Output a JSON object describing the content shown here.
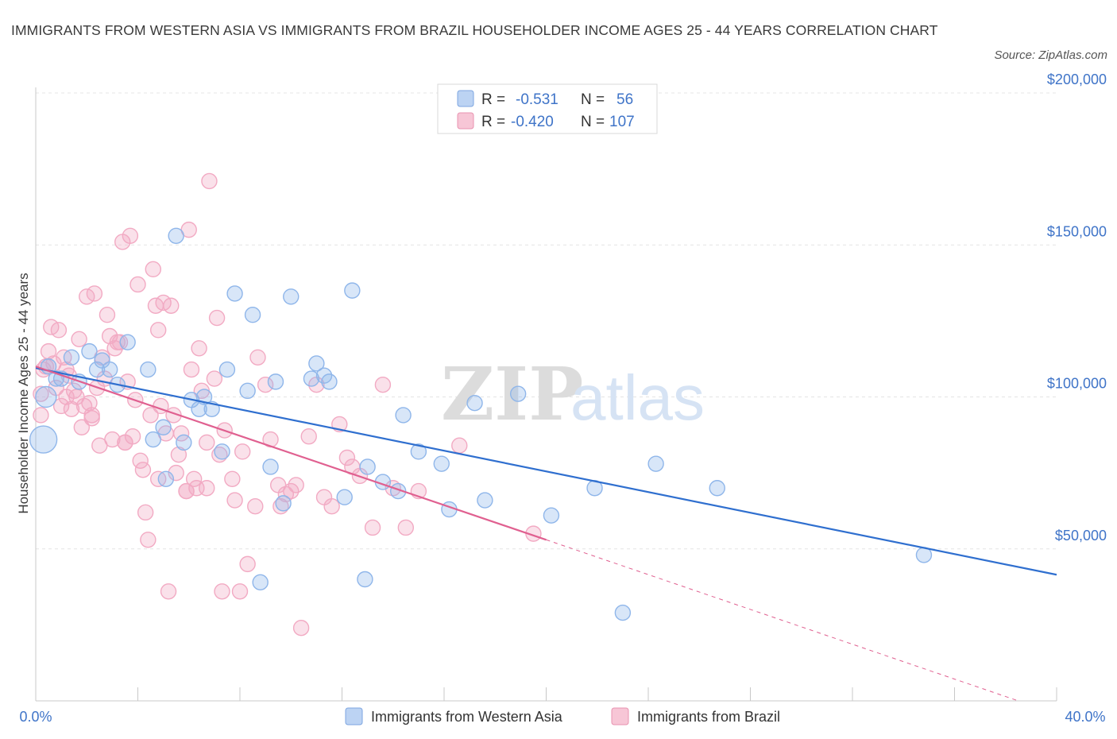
{
  "title": "IMMIGRANTS FROM WESTERN ASIA VS IMMIGRANTS FROM BRAZIL HOUSEHOLDER INCOME AGES 25 - 44 YEARS CORRELATION CHART",
  "source": "Source: ZipAtlas.com",
  "watermark": {
    "zip": "ZIP",
    "atlas": "atlas"
  },
  "legend": {
    "rows": [
      {
        "r_label": "R =",
        "r_value": "-0.531",
        "n_label": "N =",
        "n_value": "56"
      },
      {
        "r_label": "R =",
        "r_value": "-0.420",
        "n_label": "N =",
        "n_value": "107"
      }
    ]
  },
  "chart_data": {
    "type": "scatter",
    "title": "IMMIGRANTS FROM WESTERN ASIA VS IMMIGRANTS FROM BRAZIL HOUSEHOLDER INCOME AGES 25 - 44 YEARS CORRELATION CHART",
    "ylabel": "Householder Income Ages 25 - 44 years",
    "xlabel": "",
    "xlim": [
      0,
      40
    ],
    "ylim": [
      0,
      200000
    ],
    "x_tick_labels": [
      "0.0%",
      "40.0%"
    ],
    "y_ticks": [
      50000,
      100000,
      150000,
      200000
    ],
    "y_tick_labels": [
      "$50,000",
      "$100,000",
      "$150,000",
      "$200,000"
    ],
    "grid": true,
    "legend_position": "top-center",
    "series": [
      {
        "name": "Immigrants from Western Asia",
        "color": "#8fb6ea",
        "line_color": "#2f6fcf",
        "trend": {
          "x": [
            0,
            40
          ],
          "y": [
            109500,
            41500
          ]
        },
        "points": [
          [
            0.3,
            86000
          ],
          [
            0.4,
            100000
          ],
          [
            0.8,
            106000
          ],
          [
            1.0,
            106000
          ],
          [
            1.4,
            113000
          ],
          [
            1.7,
            105000
          ],
          [
            2.1,
            115000
          ],
          [
            2.4,
            109000
          ],
          [
            2.6,
            112000
          ],
          [
            2.9,
            109000
          ],
          [
            3.2,
            104000
          ],
          [
            3.6,
            118000
          ],
          [
            4.4,
            109000
          ],
          [
            4.6,
            86000
          ],
          [
            5.0,
            90000
          ],
          [
            5.1,
            73000
          ],
          [
            5.5,
            153000
          ],
          [
            5.8,
            85000
          ],
          [
            6.1,
            99000
          ],
          [
            6.4,
            96000
          ],
          [
            6.6,
            100000
          ],
          [
            6.9,
            96000
          ],
          [
            7.3,
            82000
          ],
          [
            7.5,
            109000
          ],
          [
            7.8,
            134000
          ],
          [
            8.3,
            102000
          ],
          [
            8.5,
            127000
          ],
          [
            8.8,
            39000
          ],
          [
            9.2,
            77000
          ],
          [
            9.4,
            105000
          ],
          [
            9.7,
            65000
          ],
          [
            10.0,
            133000
          ],
          [
            10.8,
            106000
          ],
          [
            11.0,
            111000
          ],
          [
            11.3,
            107000
          ],
          [
            11.5,
            105000
          ],
          [
            12.1,
            67000
          ],
          [
            12.4,
            135000
          ],
          [
            12.9,
            40000
          ],
          [
            13.0,
            77000
          ],
          [
            13.6,
            72000
          ],
          [
            14.2,
            69000
          ],
          [
            14.4,
            94000
          ],
          [
            15.0,
            82000
          ],
          [
            15.9,
            78000
          ],
          [
            16.2,
            63000
          ],
          [
            17.2,
            98000
          ],
          [
            17.6,
            66000
          ],
          [
            18.9,
            101000
          ],
          [
            20.2,
            61000
          ],
          [
            21.9,
            70000
          ],
          [
            23.0,
            29000
          ],
          [
            24.3,
            78000
          ],
          [
            26.7,
            70000
          ],
          [
            34.8,
            48000
          ],
          [
            0.5,
            110000
          ]
        ]
      },
      {
        "name": "Immigrants from Brazil",
        "color": "#f2aac3",
        "line_color": "#e06090",
        "trend": {
          "x": [
            0,
            20
          ],
          "y": [
            110000,
            53000
          ]
        },
        "trend_dashed": {
          "x": [
            20,
            38.5
          ],
          "y": [
            53000,
            0
          ]
        },
        "points": [
          [
            0.2,
            94000
          ],
          [
            0.2,
            101000
          ],
          [
            0.4,
            110000
          ],
          [
            0.5,
            115000
          ],
          [
            0.6,
            123000
          ],
          [
            0.7,
            111000
          ],
          [
            0.8,
            103000
          ],
          [
            0.9,
            122000
          ],
          [
            1.0,
            97000
          ],
          [
            1.1,
            113000
          ],
          [
            1.2,
            109000
          ],
          [
            1.3,
            107000
          ],
          [
            1.4,
            96000
          ],
          [
            1.5,
            102000
          ],
          [
            1.6,
            100000
          ],
          [
            1.7,
            119000
          ],
          [
            1.8,
            90000
          ],
          [
            1.9,
            97000
          ],
          [
            2.0,
            133000
          ],
          [
            2.1,
            98000
          ],
          [
            2.2,
            94000
          ],
          [
            2.3,
            134000
          ],
          [
            2.4,
            103000
          ],
          [
            2.5,
            84000
          ],
          [
            2.6,
            113000
          ],
          [
            2.7,
            106000
          ],
          [
            2.8,
            127000
          ],
          [
            2.9,
            120000
          ],
          [
            3.0,
            86000
          ],
          [
            3.1,
            116000
          ],
          [
            3.2,
            118000
          ],
          [
            3.3,
            118000
          ],
          [
            3.4,
            151000
          ],
          [
            3.5,
            85000
          ],
          [
            3.6,
            105000
          ],
          [
            3.7,
            153000
          ],
          [
            3.8,
            87000
          ],
          [
            3.9,
            99000
          ],
          [
            4.0,
            137000
          ],
          [
            4.1,
            79000
          ],
          [
            4.2,
            76000
          ],
          [
            4.3,
            62000
          ],
          [
            4.4,
            53000
          ],
          [
            4.5,
            94000
          ],
          [
            4.6,
            142000
          ],
          [
            4.7,
            130000
          ],
          [
            4.8,
            122000
          ],
          [
            4.9,
            97000
          ],
          [
            5.0,
            131000
          ],
          [
            5.1,
            88000
          ],
          [
            5.2,
            36000
          ],
          [
            5.3,
            130000
          ],
          [
            5.4,
            94000
          ],
          [
            5.5,
            75000
          ],
          [
            5.6,
            81000
          ],
          [
            5.7,
            88000
          ],
          [
            5.9,
            69000
          ],
          [
            6.0,
            155000
          ],
          [
            6.1,
            109000
          ],
          [
            6.2,
            73000
          ],
          [
            6.3,
            70000
          ],
          [
            6.4,
            116000
          ],
          [
            6.5,
            102000
          ],
          [
            6.7,
            70000
          ],
          [
            6.8,
            171000
          ],
          [
            7.0,
            106000
          ],
          [
            7.1,
            126000
          ],
          [
            7.2,
            81000
          ],
          [
            7.4,
            89000
          ],
          [
            7.7,
            73000
          ],
          [
            7.8,
            66000
          ],
          [
            8.0,
            36000
          ],
          [
            8.1,
            82000
          ],
          [
            8.3,
            45000
          ],
          [
            8.6,
            64000
          ],
          [
            8.7,
            113000
          ],
          [
            9.0,
            104000
          ],
          [
            9.2,
            86000
          ],
          [
            9.6,
            64000
          ],
          [
            9.8,
            68000
          ],
          [
            10.0,
            69000
          ],
          [
            10.2,
            71000
          ],
          [
            10.4,
            24000
          ],
          [
            10.7,
            87000
          ],
          [
            11.0,
            104000
          ],
          [
            11.3,
            67000
          ],
          [
            11.6,
            64000
          ],
          [
            11.9,
            91000
          ],
          [
            12.2,
            80000
          ],
          [
            12.4,
            77000
          ],
          [
            12.7,
            74000
          ],
          [
            13.2,
            57000
          ],
          [
            13.6,
            104000
          ],
          [
            14.0,
            70000
          ],
          [
            14.5,
            57000
          ],
          [
            15.0,
            69000
          ],
          [
            16.6,
            84000
          ],
          [
            19.5,
            55000
          ],
          [
            3.5,
            85000
          ],
          [
            4.8,
            73000
          ],
          [
            5.9,
            69000
          ],
          [
            7.3,
            36000
          ],
          [
            2.2,
            93000
          ],
          [
            0.3,
            109000
          ],
          [
            1.2,
            100000
          ],
          [
            6.7,
            85000
          ],
          [
            9.5,
            71000
          ]
        ]
      }
    ]
  },
  "bottom_legend": [
    {
      "label": "Immigrants from Western Asia"
    },
    {
      "label": "Immigrants from Brazil"
    }
  ]
}
